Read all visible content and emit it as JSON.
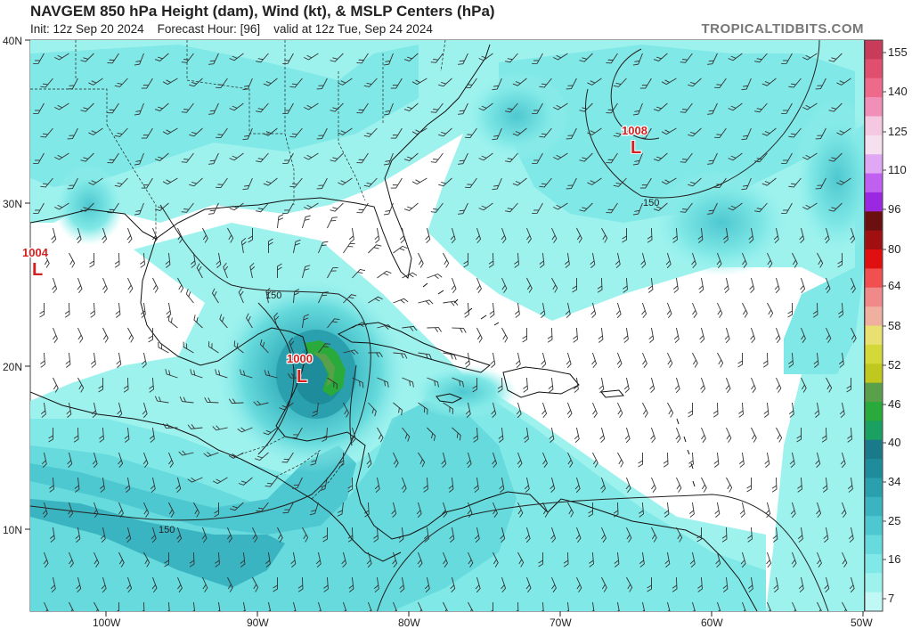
{
  "header": {
    "title": "NAVGEM 850 hPa Height (dam), Wind (kt), & MSLP Centers (hPa)",
    "init": "Init: 12z Sep 20 2024",
    "forecast_hour": "Forecast Hour: [96]",
    "valid": "valid at 12z Tue, Sep 24 2024",
    "brand": "TROPICALTIDBITS.COM"
  },
  "axes": {
    "lat_labels": [
      "40N",
      "30N",
      "20N",
      "10N"
    ],
    "lon_labels": [
      "100W",
      "90W",
      "80W",
      "70W",
      "60W",
      "50W"
    ]
  },
  "colorbar": {
    "labels": [
      "155",
      "140",
      "125",
      "110",
      "96",
      "80",
      "64",
      "58",
      "52",
      "46",
      "40",
      "34",
      "25",
      "16",
      "7"
    ],
    "colors": [
      "#c83c5a",
      "#e0506e",
      "#ee6a8a",
      "#f08fb8",
      "#f4c8e0",
      "#f6e0f0",
      "#e0a8f4",
      "#c060f0",
      "#9a28e0",
      "#6a1010",
      "#a01010",
      "#e01010",
      "#f05050",
      "#f08a8a",
      "#f0b0a0",
      "#e8e070",
      "#d4d838",
      "#c0c820",
      "#5aa04a",
      "#2aaa3a",
      "#1aa060",
      "#1a7a8a",
      "#1e8c9a",
      "#2aa0ae",
      "#3ab4c0",
      "#4ec8d0",
      "#66dadc",
      "#80e8e6",
      "#9ef2ee",
      "#bff8f4"
    ]
  },
  "pressure_centers": [
    {
      "value": "1004"
    },
    {
      "value": "1000"
    },
    {
      "value": "1008"
    }
  ],
  "contour_labels": [
    "150",
    "150",
    "150"
  ]
}
